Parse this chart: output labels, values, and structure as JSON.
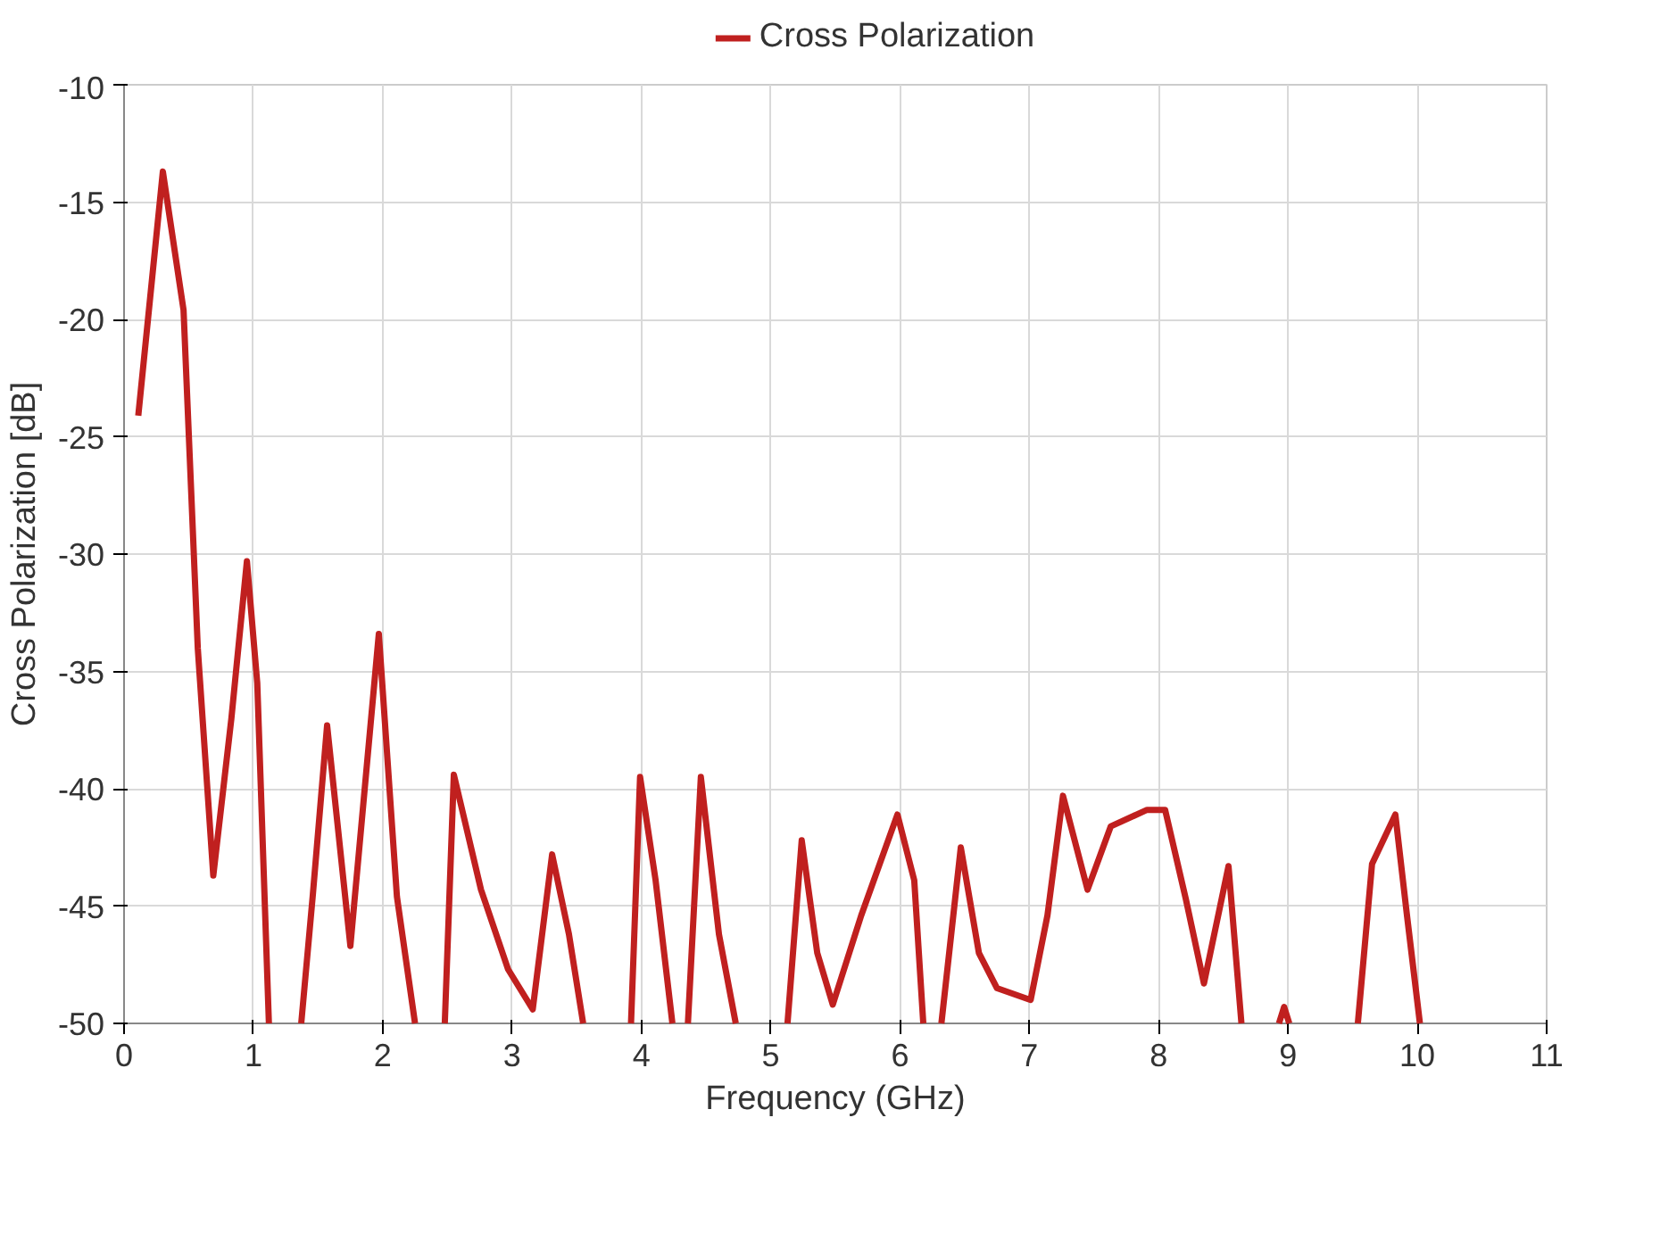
{
  "chart_data": {
    "type": "line",
    "xlabel": "Frequency (GHz)",
    "ylabel": "Cross Polarization [dB]",
    "x": [
      0.11,
      0.3,
      0.46,
      0.57,
      0.69,
      0.83,
      0.95,
      1.03,
      1.12,
      1.2,
      1.37,
      1.46,
      1.57,
      1.75,
      1.97,
      2.11,
      2.25,
      2.35,
      2.48,
      2.55,
      2.76,
      2.97,
      3.16,
      3.31,
      3.44,
      3.55,
      3.7,
      3.92,
      3.99,
      4.11,
      4.24,
      4.3,
      4.36,
      4.46,
      4.6,
      4.73,
      4.9,
      5.13,
      5.24,
      5.36,
      5.48,
      5.7,
      5.98,
      6.11,
      6.18,
      6.25,
      6.32,
      6.47,
      6.61,
      6.75,
      7.01,
      7.14,
      7.26,
      7.45,
      7.63,
      7.91,
      8.05,
      8.21,
      8.35,
      8.54,
      8.64,
      8.8,
      8.93,
      8.97,
      9.01,
      9.3,
      9.54,
      9.65,
      9.83,
      9.92,
      10.02
    ],
    "series": [
      {
        "name": "Cross Polarization",
        "color": "#c0201f",
        "values": [
          -24.1,
          -13.7,
          -19.6,
          -34,
          -43.7,
          -37,
          -30.3,
          -35.5,
          -50,
          null,
          -50,
          -44.5,
          -37.3,
          -46.7,
          -33.4,
          -44.6,
          -50,
          null,
          -50,
          -39.4,
          -44.3,
          -47.7,
          -49.4,
          -42.8,
          -46.2,
          -50,
          null,
          -50,
          -39.5,
          -43.9,
          -50,
          null,
          -50,
          -39.5,
          -46.2,
          -50,
          null,
          -50,
          -42.2,
          -47.0,
          -49.2,
          -45.4,
          -41.1,
          -43.9,
          -50,
          null,
          -50,
          -42.5,
          -47,
          -48.5,
          -49.0,
          -45.4,
          -40.3,
          -44.3,
          -41.6,
          -40.9,
          -40.9,
          -44.7,
          -48.3,
          -43.3,
          -50,
          null,
          -50,
          -49.3,
          -50,
          null,
          -50,
          -43.2,
          -41.1,
          -45.4,
          -50
        ]
      }
    ],
    "xlim": [
      0,
      11
    ],
    "ylim": [
      -50,
      -10
    ],
    "xticks": [
      0,
      1,
      2,
      3,
      4,
      5,
      6,
      7,
      8,
      9,
      10,
      11
    ],
    "yticks": [
      -10,
      -15,
      -20,
      -25,
      -30,
      -35,
      -40,
      -45,
      -50
    ],
    "grid": true,
    "legend": "top",
    "marker": "none",
    "line_style": "solid"
  }
}
